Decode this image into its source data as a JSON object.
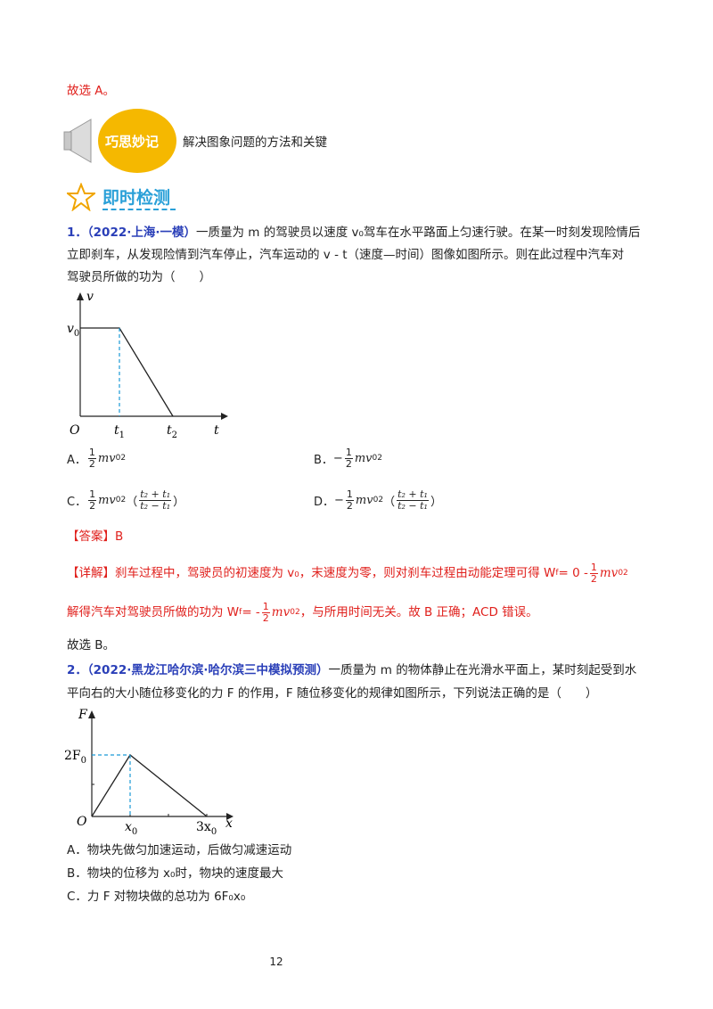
{
  "top_line": "故选 A。",
  "tip": {
    "badge": "巧思妙记",
    "text": "解决图象问题的方法和关键"
  },
  "section_title": "即时检测",
  "q1": {
    "number": "1．",
    "source": "（2022·上海·一模）",
    "text_line1": "一质量为 m 的驾驶员以速度 v₀驾车在水平路面上匀速行驶。在某一时刻发现险情后",
    "text_line2": "立即刹车，从发现险情到汽车停止，汽车运动的 v - t（速度—时间）图像如图所示。则在此过程中汽车对",
    "text_line3": "驾驶员所做的功为（　　）",
    "graph": {
      "y_axis": "v",
      "x_axis": "t",
      "origin": "O",
      "v_label": "v",
      "v_sub": "0",
      "t1": "t",
      "t1_sub": "1",
      "t2": "t",
      "t2_sub": "2"
    },
    "options": {
      "A_label": "A．",
      "B_label": "B．",
      "C_label": "C．",
      "D_label": "D．",
      "half_num": "1",
      "half_den": "2",
      "mv": "mv",
      "v_sub": "0",
      "sq": "2",
      "minus": "−",
      "t_num": "t₂ + t₁",
      "t_den": "t₂ − t₁",
      "lp": "（",
      "rp": "）"
    },
    "answer": "【答案】B",
    "detail_line1": "【详解】刹车过程中，驾驶员的初速度为 v₀，末速度为零，则对刹车过程由动能定理可得 W",
    "detail_f": "f",
    "detail_eq": "= 0 -",
    "detail_line2a": "解得汽车对驾驶员所做的功为 W",
    "detail_eq2": "= -",
    "detail_line2b": "，与所用时间无关。故 B 正确；ACD 错误。",
    "conclusion": "故选 B。"
  },
  "q2": {
    "number": "2．",
    "source": "（2022·黑龙江哈尔滨·哈尔滨三中模拟预测）",
    "text_line1": "一质量为 m 的物体静止在光滑水平面上，某时刻起受到水",
    "text_line2": "平向右的大小随位移变化的力 F 的作用，F 随位移变化的规律如图所示，下列说法正确的是（　　）",
    "graph": {
      "y_axis": "F",
      "x_axis": "x",
      "origin": "O",
      "peak": "2F",
      "peak_sub": "0",
      "x0": "x",
      "x0_sub": "0",
      "x3": "3x",
      "x3_sub": "0"
    },
    "option_a": "A．物块先做匀加速运动，后做匀减速运动",
    "option_b": "B．物块的位移为 x₀时，物块的速度最大",
    "option_c": "C．力 F 对物块做的总功为 6F₀x₀"
  },
  "page_number": "12",
  "colors": {
    "answer_red": "#e0201c",
    "source_blue": "#2a3fb8",
    "badge_yellow": "#f5b800",
    "title_blue": "#2aa0d8",
    "dash_blue": "#1a9ad6"
  }
}
